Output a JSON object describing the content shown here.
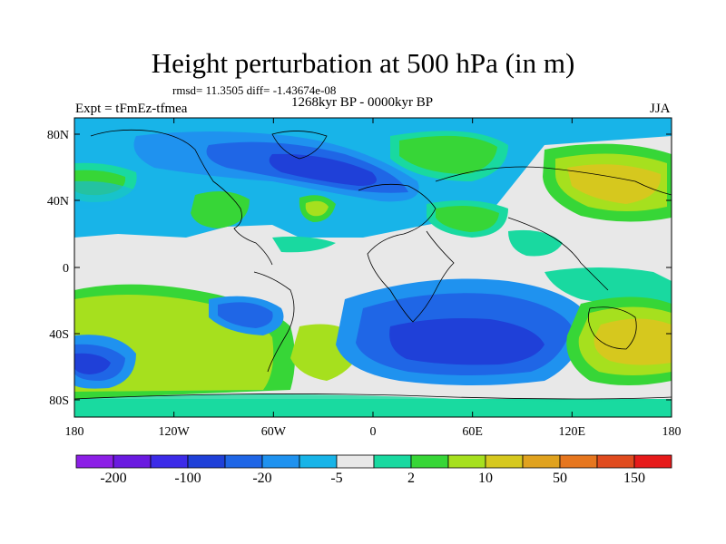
{
  "title": "Height perturbation at 500 hPa (in m)",
  "stats_line": "rmsd= 11.3505 diff= -1.43674e-08",
  "subtitle": "1268kyr BP - 0000kyr BP",
  "left_label": "Expt = tFmEz-tfmea",
  "right_label": "JJA",
  "lat_ticks": [
    "80N",
    "40N",
    "0",
    "40S",
    "80S"
  ],
  "lon_ticks": [
    "180",
    "120W",
    "60W",
    "0",
    "60E",
    "120E",
    "180"
  ],
  "colorbar": {
    "colors": [
      "#8c1fe6",
      "#6a1ae0",
      "#3c2be8",
      "#1f40d8",
      "#1f66e6",
      "#1f92ef",
      "#18b4e8",
      "#e8e8e8",
      "#19d9a0",
      "#37d637",
      "#a6e01e",
      "#d6c81e",
      "#e0a21e",
      "#e6761e",
      "#e04b1e",
      "#e61a1a"
    ],
    "labels": [
      "-200",
      "-100",
      "-20",
      "-5",
      "2",
      "10",
      "50",
      "150"
    ]
  }
}
